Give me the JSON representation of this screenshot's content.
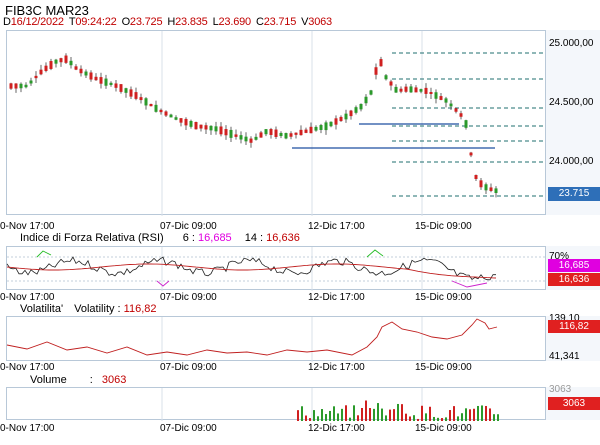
{
  "header": {
    "title": "FIB3C MAR23",
    "ohlc": [
      {
        "key": "D",
        "value": "16/12/2022"
      },
      {
        "key": "T",
        "value": "09:24:22"
      },
      {
        "key": "O",
        "value": "23.725"
      },
      {
        "key": "H",
        "value": "23.835"
      },
      {
        "key": "L",
        "value": "23.690"
      },
      {
        "key": "C",
        "value": "23.715"
      },
      {
        "key": "V",
        "value": "3063"
      }
    ]
  },
  "x_axis_labels": [
    "0-Nov 17:00",
    "07-Dic 09:00",
    "12-Dic 17:00",
    "15-Dic 09:00"
  ],
  "price_panel": {
    "y_ticks": [
      "25.000,00",
      "24.500,00",
      "24.000,00"
    ],
    "last_price": "23.715",
    "last_price_color": "#2e6fb8"
  },
  "rsi_panel": {
    "label": "Indice di Forza Relativa (RSI)",
    "p1": "6",
    "v1": "16,685",
    "p2": "14",
    "v2": "16,636",
    "tick": "70%",
    "tag1": "16,685",
    "tag2": "16,636",
    "tag1_color": "#e000e0",
    "tag2_color": "#e02020"
  },
  "vol_panel": {
    "label": "Volatilita'",
    "sublabel": "Volatility",
    "value": "116,82",
    "tick_high": "139,10",
    "tick_low": "41,341",
    "tag": "116,82",
    "tag_color": "#e02020"
  },
  "volume_panel": {
    "label": "Volume",
    "value": "3063",
    "tick": "3063",
    "tag": "3063",
    "tag_color": "#e02020"
  }
}
